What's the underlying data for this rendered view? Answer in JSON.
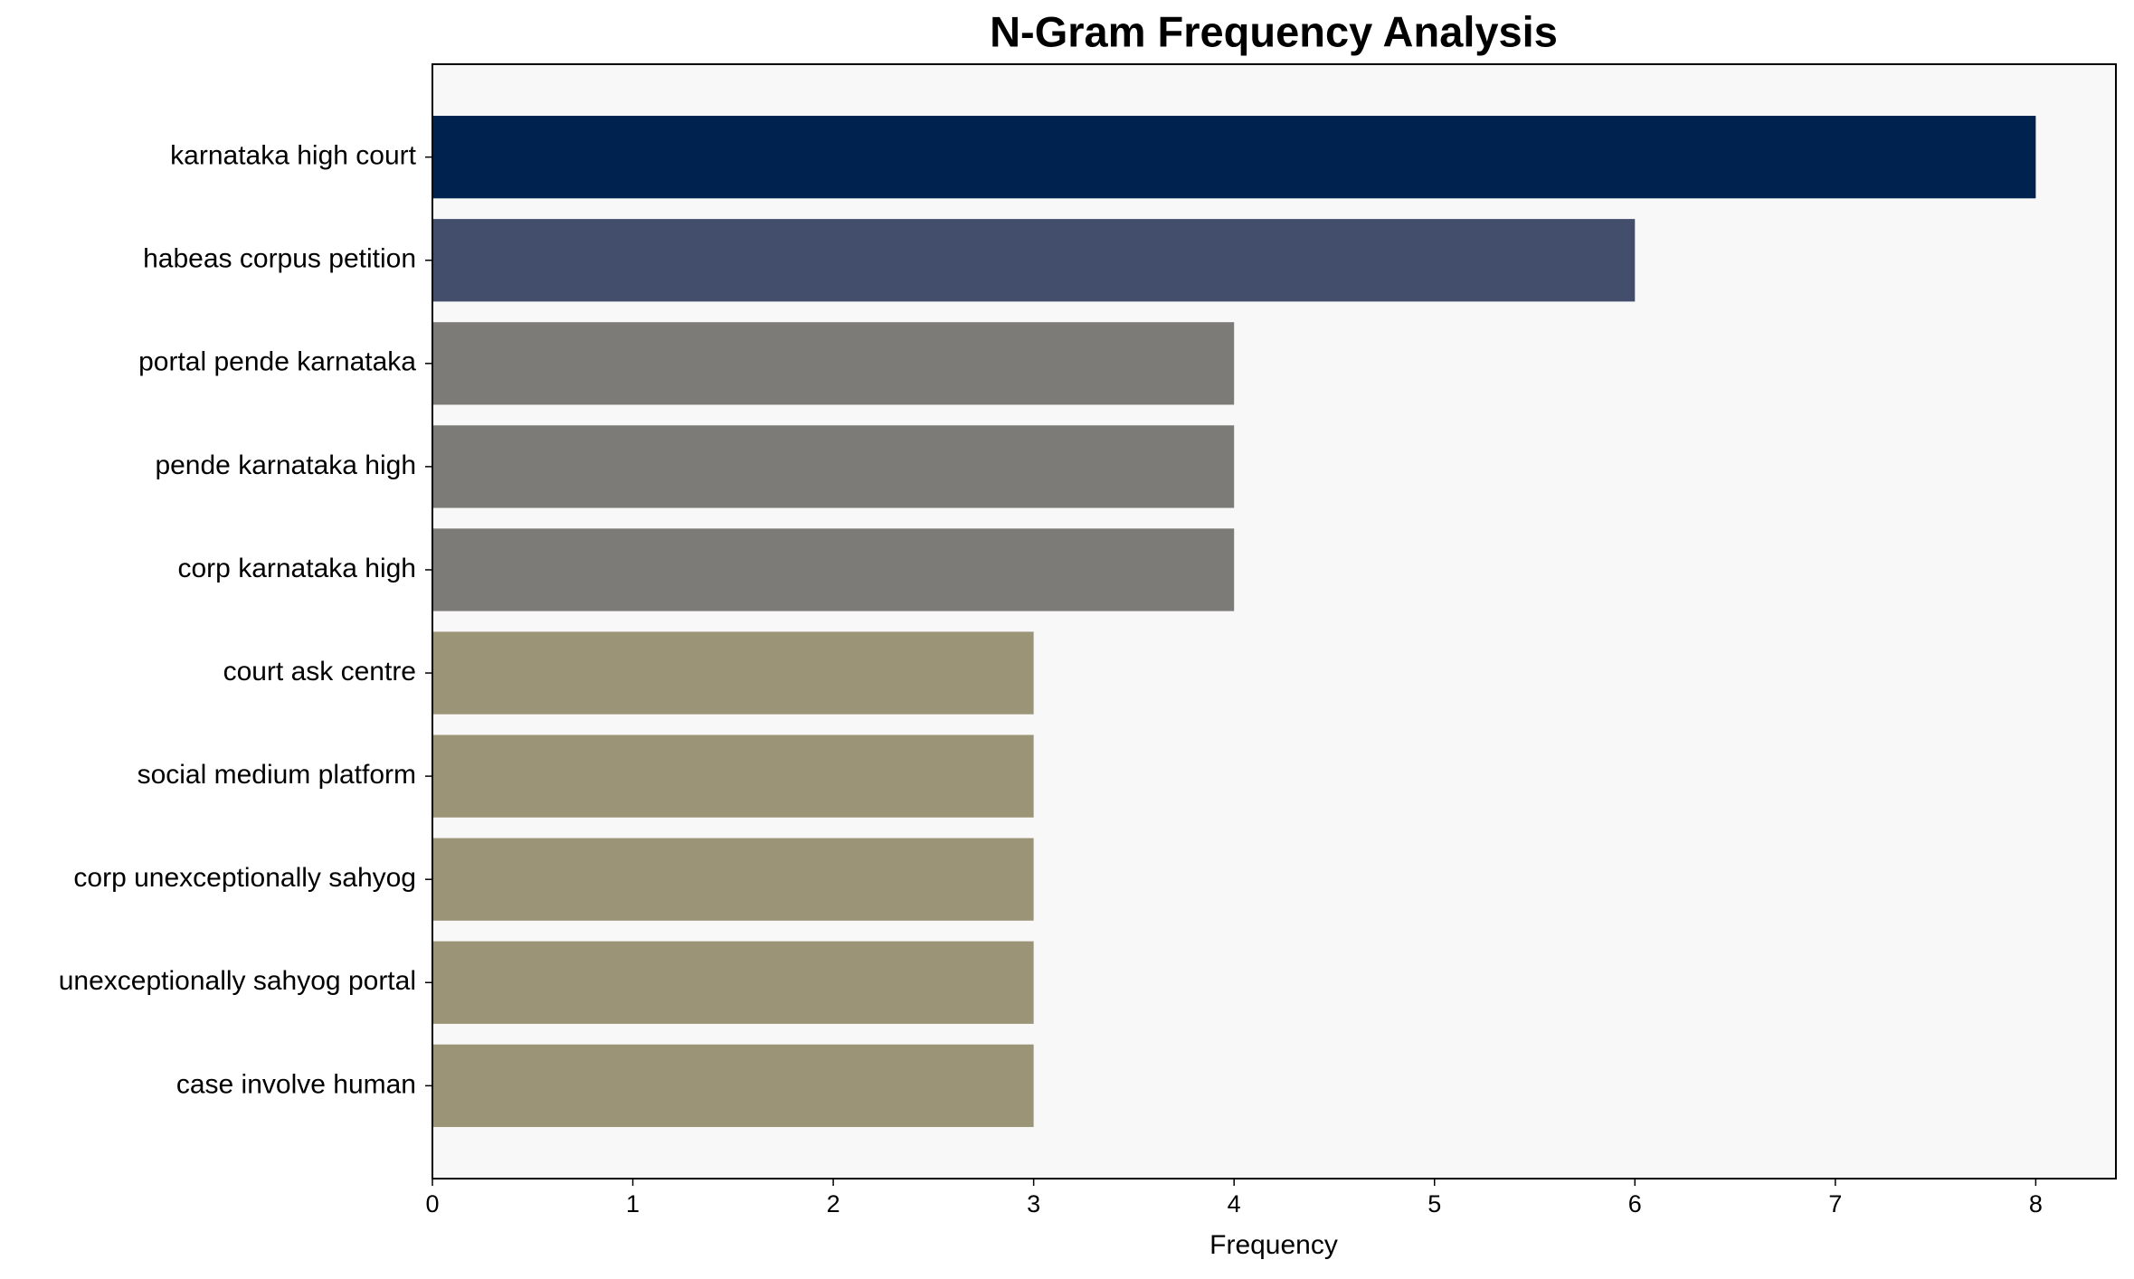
{
  "chart_data": {
    "type": "barh",
    "title": "N-Gram Frequency Analysis",
    "xlabel": "Frequency",
    "categories": [
      "karnataka high court",
      "habeas corpus petition",
      "portal pende karnataka",
      "pende karnataka high",
      "corp karnataka high",
      "court ask centre",
      "social medium platform",
      "corp unexceptionally sahyog",
      "unexceptionally sahyog portal",
      "case involve human"
    ],
    "values": [
      8,
      6,
      4,
      4,
      4,
      3,
      3,
      3,
      3,
      3
    ],
    "colors": [
      "#00224e",
      "#434e6c",
      "#7c7b78",
      "#7c7b78",
      "#7c7b78",
      "#9b9476",
      "#9b9476",
      "#9b9476",
      "#9b9476",
      "#9b9476"
    ],
    "xlim": [
      0,
      8.4
    ],
    "xticks": [
      0,
      1,
      2,
      3,
      4,
      5,
      6,
      7,
      8
    ],
    "background": "#f8f8f8"
  }
}
